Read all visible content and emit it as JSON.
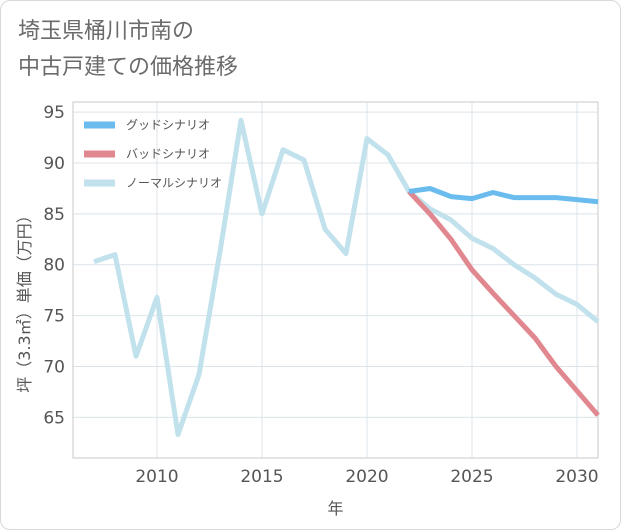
{
  "title_lines": [
    "埼玉県桶川市南の",
    "中古戸建ての価格推移"
  ],
  "chart_data": {
    "type": "line",
    "xlabel": "年",
    "ylabel": "坪（3.3㎡）単価（万円）",
    "xlim": [
      2006,
      2031
    ],
    "ylim": [
      61,
      96
    ],
    "xticks": [
      2010,
      2015,
      2020,
      2025,
      2030
    ],
    "yticks": [
      65,
      70,
      75,
      80,
      85,
      90,
      95
    ],
    "grid": true,
    "legend_position": "top-left",
    "series": [
      {
        "name": "グッドシナリオ",
        "color": "#6bbcee",
        "x": [
          2022,
          2023,
          2024,
          2025,
          2026,
          2027,
          2028,
          2029,
          2030,
          2031
        ],
        "y": [
          87.2,
          87.5,
          86.7,
          86.5,
          87.1,
          86.6,
          86.6,
          86.6,
          86.4,
          86.2
        ]
      },
      {
        "name": "バッドシナリオ",
        "color": "#e0878f",
        "x": [
          2022,
          2023,
          2024,
          2025,
          2026,
          2027,
          2028,
          2029,
          2030,
          2031
        ],
        "y": [
          87.2,
          85.0,
          82.5,
          79.5,
          77.2,
          75.0,
          72.8,
          70.0,
          67.6,
          65.2
        ]
      },
      {
        "name": "ノーマルシナリオ",
        "color": "#c1e1ec",
        "x": [
          2007,
          2008,
          2009,
          2010,
          2011,
          2012,
          2013,
          2014,
          2015,
          2016,
          2017,
          2018,
          2019,
          2020,
          2021,
          2022,
          2023,
          2024,
          2025,
          2026,
          2027,
          2028,
          2029,
          2030,
          2031
        ],
        "y": [
          80.3,
          81.0,
          71.0,
          76.8,
          63.3,
          69.2,
          81.3,
          94.2,
          85.0,
          91.3,
          90.3,
          83.5,
          81.1,
          92.4,
          90.8,
          87.2,
          85.5,
          84.4,
          82.6,
          81.6,
          80.0,
          78.7,
          77.1,
          76.1,
          74.4
        ]
      }
    ]
  }
}
